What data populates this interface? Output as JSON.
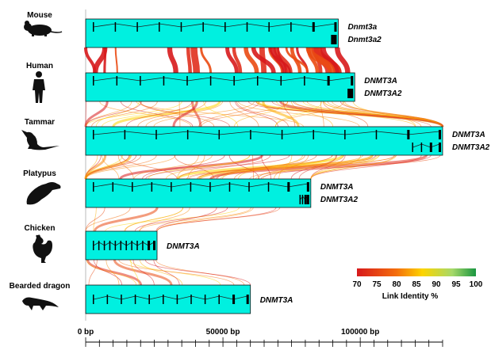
{
  "species": [
    {
      "name": "Mouse",
      "icon": "mouse-silhouette-icon",
      "genes": [
        {
          "label": "Dnmt3a",
          "start": 0,
          "end": 92000
        },
        {
          "label": "Dnmt3a2",
          "start": 88500,
          "end": 92000
        }
      ]
    },
    {
      "name": "Human",
      "icon": "human-silhouette-icon",
      "genes": [
        {
          "label": "DNMT3A",
          "start": 0,
          "end": 98000
        },
        {
          "label": "DNMT3A2",
          "start": 94500,
          "end": 98000
        }
      ]
    },
    {
      "name": "Tammar",
      "icon": "wallaby-silhouette-icon",
      "genes": [
        {
          "label": "DNMT3A",
          "start": 0,
          "end": 130000
        },
        {
          "label": "DNMT3A2",
          "start": 118000,
          "end": 130000
        }
      ]
    },
    {
      "name": "Platypus",
      "icon": "platypus-silhouette-icon",
      "genes": [
        {
          "label": "DNMT3A",
          "start": 0,
          "end": 82000
        },
        {
          "label": "DNMT3A2",
          "start": 77000,
          "end": 82000
        }
      ]
    },
    {
      "name": "Chicken",
      "icon": "chicken-silhouette-icon",
      "genes": [
        {
          "label": "DNMT3A",
          "start": 0,
          "end": 26000
        }
      ]
    },
    {
      "name": "Bearded dragon",
      "icon": "lizard-silhouette-icon",
      "genes": [
        {
          "label": "DNMT3A",
          "start": 0,
          "end": 60000
        }
      ]
    }
  ],
  "axis": {
    "ticks": [
      {
        "value": 0,
        "label": "0 bp"
      },
      {
        "value": 50000,
        "label": "50000 bp"
      },
      {
        "value": 100000,
        "label": "100000 bp"
      }
    ],
    "max": 130000,
    "minor_step": 5000
  },
  "legend": {
    "title": "Link Identity %",
    "ticks": [
      "70",
      "75",
      "80",
      "85",
      "90",
      "95",
      "100"
    ],
    "colors": [
      "#d7191c",
      "#f46d0c",
      "#fdd400",
      "#a6d96a",
      "#1a9641"
    ]
  },
  "colors": {
    "gene_box": "#00f0e0",
    "gene_border": "#111111",
    "exon": "#000000"
  }
}
